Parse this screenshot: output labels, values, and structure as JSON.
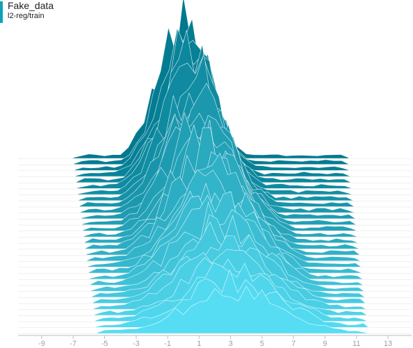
{
  "header": {
    "title": "Fake_data",
    "subtitle": "l2-reg/train"
  },
  "chart_data": {
    "type": "area",
    "subtype": "ridgeline-histogram",
    "xlim": [
      -10.5,
      14.5
    ],
    "x_ticks": [
      -9,
      -7,
      -5,
      -3,
      -1,
      1,
      3,
      5,
      7,
      9,
      11,
      13
    ],
    "color_oldest": "#00798f",
    "color_newest": "#56ddf3",
    "slice_count": 30,
    "mean_start": 0.0,
    "mean_end": 3.2,
    "spread_start": 1.55,
    "spread_end": 3.1,
    "support_start": [
      -7,
      10.5
    ],
    "support_end": [
      -5.5,
      11.8
    ],
    "peak_height_start": 198,
    "peak_height_end": 62
  }
}
